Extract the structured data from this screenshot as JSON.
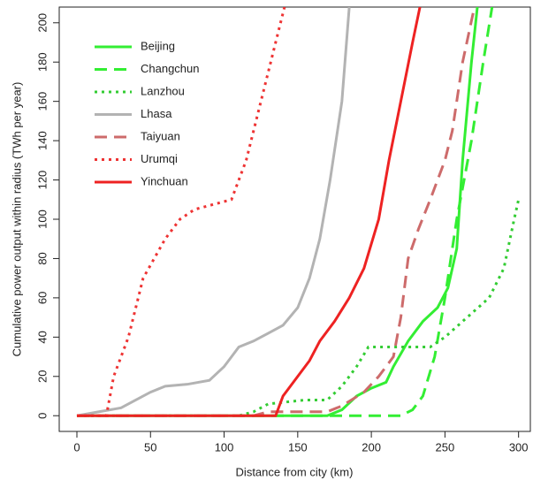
{
  "chart_data": {
    "type": "line",
    "x_label": "Distance from city (km)",
    "y_label": "Cumulative power output within radius (TWh per year)",
    "xlim": [
      -12,
      308
    ],
    "ylim": [
      -8,
      208
    ],
    "xticks": [
      0,
      50,
      100,
      150,
      200,
      250,
      300
    ],
    "yticks": [
      0,
      20,
      40,
      60,
      80,
      100,
      120,
      140,
      160,
      180,
      200
    ],
    "legend": "top-left",
    "series": [
      {
        "name": "Beijing",
        "color": "#33ee33",
        "dash": "solid",
        "x": [
          0,
          165,
          170,
          180,
          190,
          200,
          210,
          215,
          225,
          235,
          245,
          252,
          258,
          262,
          268,
          272
        ],
        "values": [
          0,
          0,
          0,
          3,
          10,
          14,
          17,
          25,
          38,
          48,
          55,
          65,
          85,
          130,
          180,
          208
        ]
      },
      {
        "name": "Changchun",
        "color": "#33ee33",
        "dash": "dashed",
        "x": [
          0,
          220,
          228,
          235,
          243,
          250,
          258,
          268,
          276,
          282
        ],
        "values": [
          0,
          0,
          3,
          10,
          30,
          60,
          100,
          140,
          180,
          208
        ]
      },
      {
        "name": "Lanzhou",
        "color": "#33cc33",
        "dash": "dotted",
        "x": [
          0,
          110,
          120,
          130,
          155,
          170,
          180,
          190,
          198,
          220,
          240,
          250,
          265,
          280,
          290,
          297,
          300
        ],
        "values": [
          0,
          0,
          2,
          6,
          8,
          8,
          15,
          25,
          35,
          35,
          35,
          40,
          50,
          60,
          75,
          100,
          110
        ]
      },
      {
        "name": "Lhasa",
        "color": "#b3b3b3",
        "dash": "solid",
        "x": [
          0,
          15,
          30,
          40,
          50,
          60,
          75,
          90,
          100,
          110,
          120,
          130,
          140,
          150,
          158,
          165,
          172,
          180,
          185
        ],
        "values": [
          0,
          2,
          4,
          8,
          12,
          15,
          16,
          18,
          25,
          35,
          38,
          42,
          46,
          55,
          70,
          90,
          120,
          160,
          208
        ]
      },
      {
        "name": "Taiyuan",
        "color": "#cd6b6b",
        "dash": "dashed",
        "x": [
          0,
          120,
          130,
          170,
          180,
          195,
          205,
          215,
          220,
          225,
          232,
          240,
          250,
          255,
          262,
          270
        ],
        "values": [
          0,
          0,
          2,
          2,
          5,
          12,
          20,
          30,
          50,
          80,
          95,
          110,
          130,
          145,
          180,
          208
        ]
      },
      {
        "name": "Urumqi",
        "color": "#ee3333",
        "dash": "dotted",
        "x": [
          0,
          20,
          25,
          35,
          45,
          60,
          70,
          80,
          90,
          105,
          115,
          125,
          135,
          141
        ],
        "values": [
          0,
          0,
          20,
          40,
          70,
          90,
          100,
          105,
          107,
          110,
          130,
          160,
          190,
          208
        ]
      },
      {
        "name": "Yinchuan",
        "color": "#ee2222",
        "dash": "solid",
        "x": [
          0,
          135,
          140,
          150,
          158,
          165,
          175,
          185,
          195,
          205,
          212,
          220,
          228,
          233
        ],
        "values": [
          0,
          0,
          10,
          20,
          28,
          38,
          48,
          60,
          75,
          100,
          130,
          160,
          190,
          208
        ]
      }
    ]
  }
}
